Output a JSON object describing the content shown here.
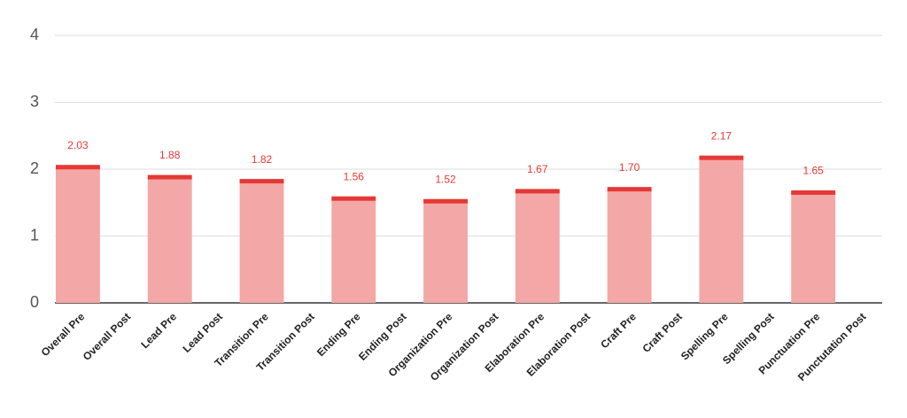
{
  "chart_data": {
    "type": "bar",
    "categories": [
      "Overall Pre",
      "Overall Post",
      "Lead Pre",
      "Lead Post",
      "Transition Pre",
      "Transition Post",
      "Ending Pre",
      "Ending Post",
      "Organization Pre",
      "Organization Post",
      "Elaboration Pre",
      "Elaboration Post",
      "Craft Pre",
      "Craft Post",
      "Spelling Pre",
      "Spelling Post",
      "Punctuation Pre",
      "Punctutation Post"
    ],
    "values": [
      2.03,
      null,
      1.88,
      null,
      1.82,
      null,
      1.56,
      null,
      1.52,
      null,
      1.67,
      null,
      1.7,
      null,
      2.17,
      null,
      1.65,
      null
    ],
    "value_labels": [
      "2.03",
      null,
      "1.88",
      null,
      "1.82",
      null,
      "1.56",
      null,
      "1.52",
      null,
      "1.67",
      null,
      "1.70",
      null,
      "2.17",
      null,
      "1.65",
      null
    ],
    "color": "#f4a7a7",
    "cap_color": "#e53935",
    "ylim": [
      0,
      4
    ],
    "yticks": [
      0,
      1,
      2,
      3,
      4
    ],
    "grid": true
  }
}
